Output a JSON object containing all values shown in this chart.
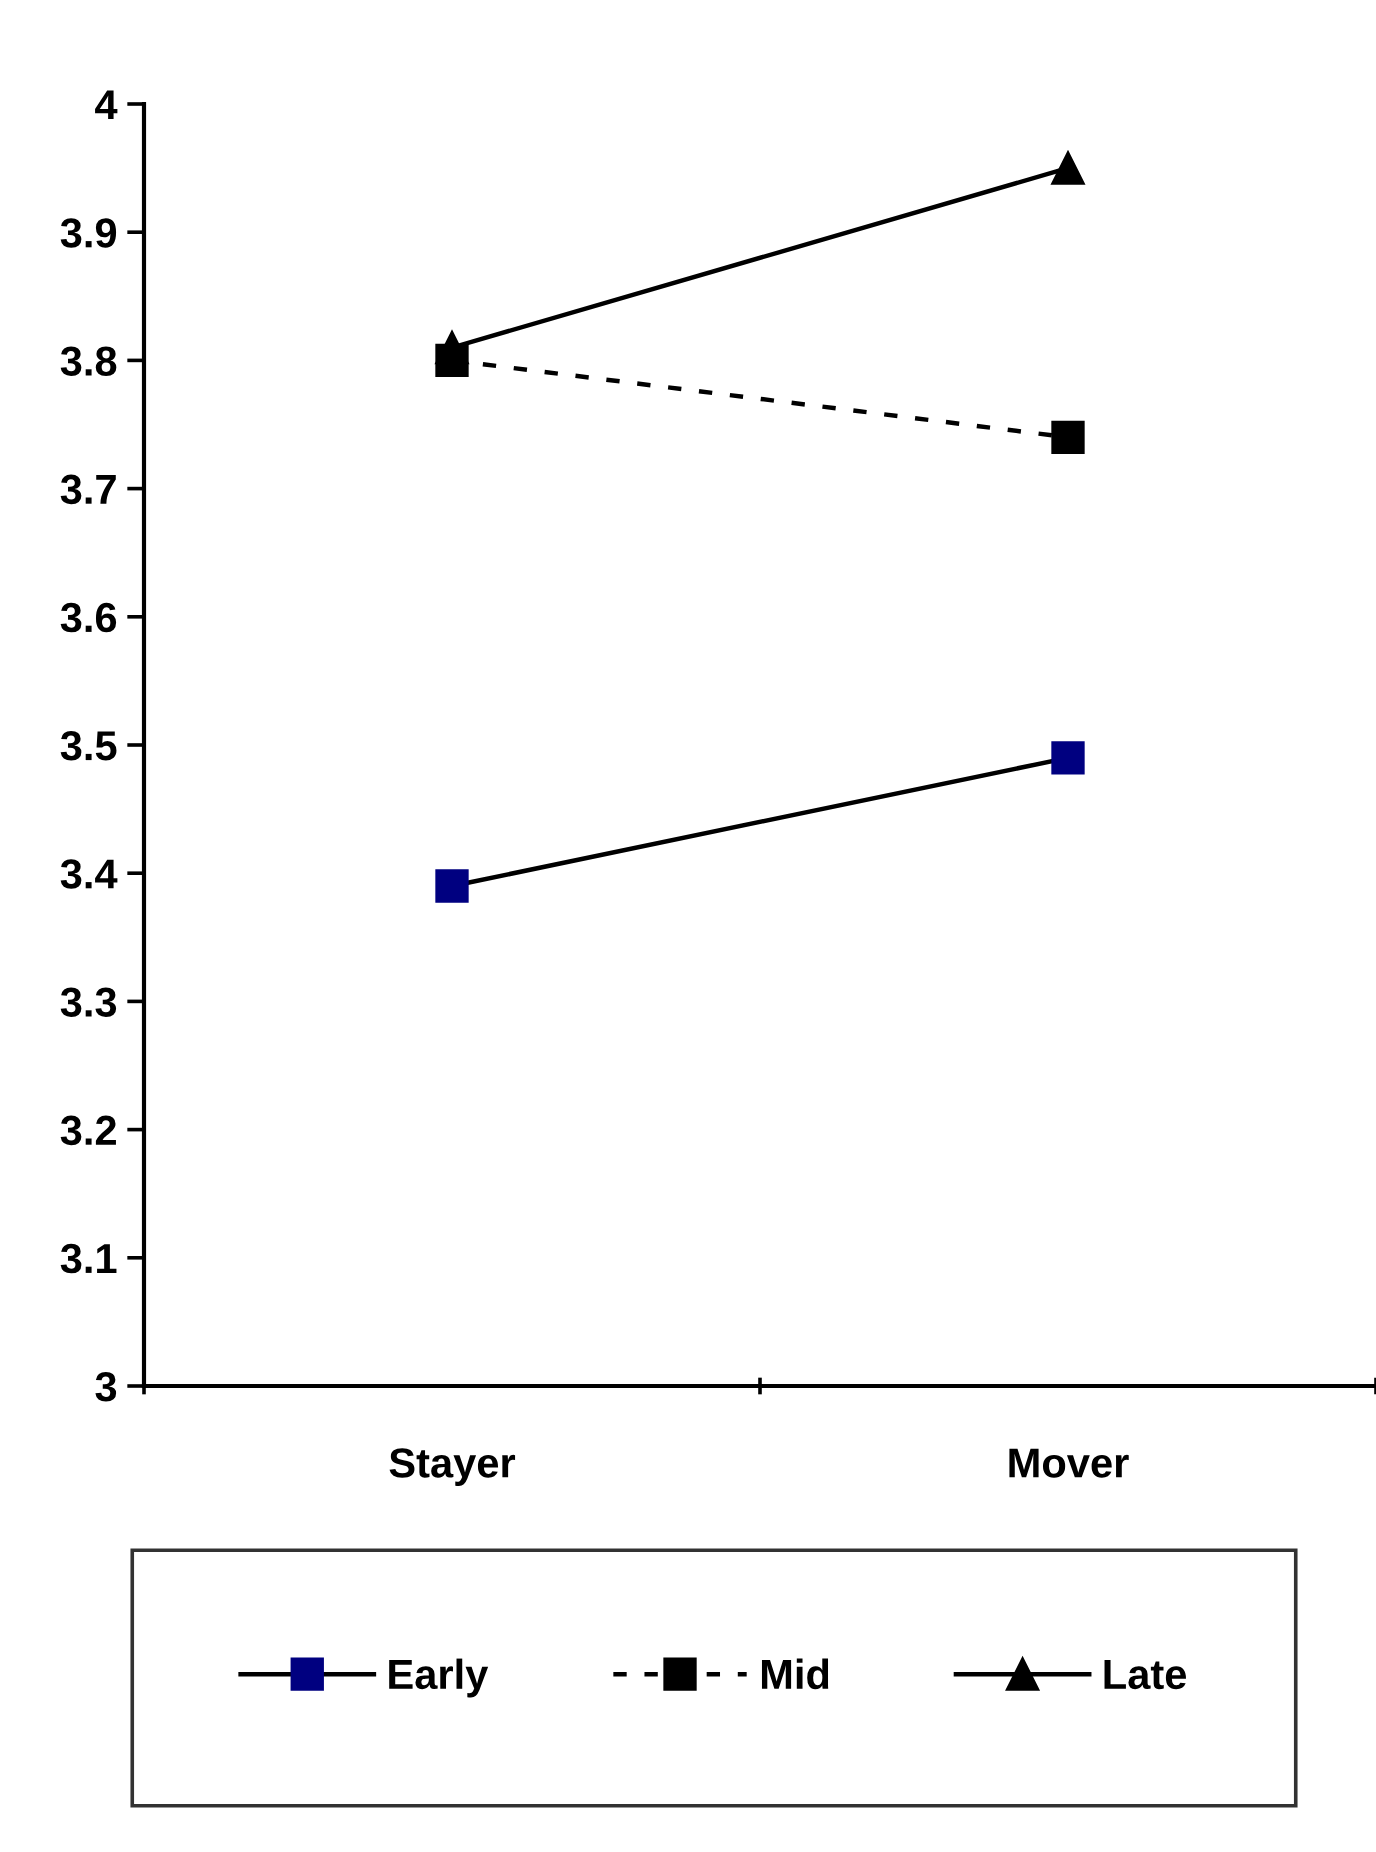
{
  "chart_data": {
    "type": "line",
    "categories": [
      "Stayer",
      "Mover"
    ],
    "series": [
      {
        "name": "Early",
        "color": "#000080",
        "values": [
          3.39,
          3.49
        ],
        "marker": "square",
        "line_style": "solid"
      },
      {
        "name": "Mid",
        "color": "#000000",
        "values": [
          3.8,
          3.74
        ],
        "marker": "square",
        "line_style": "dashed"
      },
      {
        "name": "Late",
        "color": "#000000",
        "values": [
          3.81,
          3.95
        ],
        "marker": "triangle",
        "line_style": "solid"
      }
    ],
    "ylim": [
      3,
      4
    ],
    "yticks": [
      3,
      3.1,
      3.2,
      3.3,
      3.4,
      3.5,
      3.6,
      3.7,
      3.8,
      3.9,
      4
    ],
    "grid": false,
    "legend": "bottom"
  }
}
